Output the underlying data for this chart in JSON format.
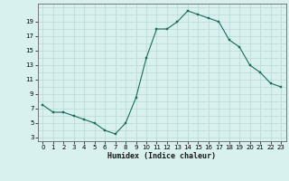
{
  "x": [
    0,
    1,
    2,
    3,
    4,
    5,
    6,
    7,
    8,
    9,
    10,
    11,
    12,
    13,
    14,
    15,
    16,
    17,
    18,
    19,
    20,
    21,
    22,
    23
  ],
  "y": [
    7.5,
    6.5,
    6.5,
    6.0,
    5.5,
    5.0,
    4.0,
    3.5,
    5.0,
    8.5,
    14.0,
    18.0,
    18.0,
    19.0,
    20.5,
    20.0,
    19.5,
    19.0,
    16.5,
    15.5,
    13.0,
    12.0,
    10.5,
    10.0
  ],
  "xlabel": "Humidex (Indice chaleur)",
  "xlim": [
    -0.5,
    23.5
  ],
  "ylim": [
    2.5,
    21.5
  ],
  "yticks": [
    3,
    5,
    7,
    9,
    11,
    13,
    15,
    17,
    19
  ],
  "xticks": [
    0,
    1,
    2,
    3,
    4,
    5,
    6,
    7,
    8,
    9,
    10,
    11,
    12,
    13,
    14,
    15,
    16,
    17,
    18,
    19,
    20,
    21,
    22,
    23
  ],
  "line_color": "#1a6b5a",
  "marker_color": "#1a6b5a",
  "bg_color": "#d8f0ee",
  "grid_major_color": "#b8d8d5",
  "grid_minor_color": "#cce8e5"
}
